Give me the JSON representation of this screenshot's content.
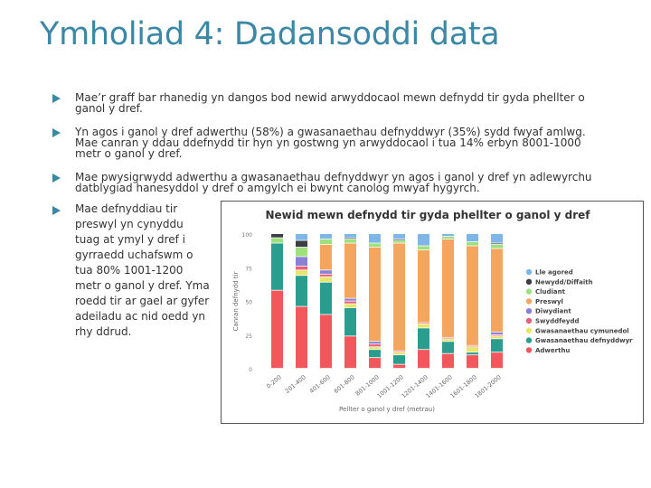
{
  "slide": {
    "title": "Ymholiad 4: Dadansoddi data",
    "bullets": [
      "Mae’r graff bar rhanedig yn dangos bod newid arwyddocaol mewn defnydd tir gyda phellter o ganol y dref.",
      "Yn agos i ganol y dref adwerthu (58%) a gwasanaethau defnyddwyr (35%) sydd fwyaf amlwg. Mae canran y ddau ddefnydd tir hyn yn gostwng yn arwyddocaol i tua 14% erbyn 8001-1000 metr o ganol y dref.",
      "Mae pwysigrwydd adwerthu a gwasanaethau defnyddwyr yn agos i ganol y dref yn adlewyrchu datblygiad hanesyddol y dref o amgylch ei bwynt canolog mwyaf hygyrch.",
      "Mae defnyddiau tir preswyl yn cynyddu tuag at ymyl y dref i gyrraedd uchafswm o tua 80% 1001-1200 metr o ganol y dref. Yma roedd tir ar gael ar gyfer adeiladu ac nid oedd yn rhy ddrud."
    ],
    "bullet_icon": "arrow-bullet-icon",
    "accent_color": "#3a87a6"
  },
  "chart_data": {
    "type": "bar",
    "stacked": true,
    "title": "Newid mewn defnydd tir gyda phellter o ganol y dref",
    "xlabel": "Pellter o ganol y dref (metrau)",
    "ylabel": "Canran defnydd tir",
    "ylim": [
      0,
      100
    ],
    "yticks": [
      0,
      25,
      50,
      75,
      100
    ],
    "grid": false,
    "legend_position": "right",
    "categories": [
      "0-200",
      "201-400",
      "401-600",
      "601-800",
      "801-1000",
      "1001-1200",
      "1201-1400",
      "1401-1600",
      "1601-1800",
      "1801-2000"
    ],
    "series": [
      {
        "name": "Adwerthu",
        "color": "#f2585b",
        "values": [
          58,
          46,
          40,
          24,
          8,
          3,
          14,
          11,
          10,
          12
        ]
      },
      {
        "name": "Gwasanaethau defnyddwyr",
        "color": "#2a9d8f",
        "values": [
          35,
          23,
          24,
          21,
          6,
          7,
          16,
          9,
          2,
          10
        ]
      },
      {
        "name": "Gwasanaethau cymunedol",
        "color": "#e9e46c",
        "values": [
          0,
          4,
          4,
          3,
          2,
          2,
          3,
          2,
          4,
          2
        ]
      },
      {
        "name": "Swyddfeydd",
        "color": "#e8607a",
        "values": [
          0,
          3,
          2,
          2,
          2,
          1,
          1,
          1,
          1,
          1
        ]
      },
      {
        "name": "Diwydiant",
        "color": "#8b7fd6",
        "values": [
          0,
          7,
          3,
          2,
          2,
          0,
          0,
          0,
          0,
          2
        ]
      },
      {
        "name": "Preswyl",
        "color": "#f4a65e",
        "values": [
          0,
          0,
          19,
          41,
          70,
          80,
          54,
          73,
          74,
          62
        ]
      },
      {
        "name": "Cludiant",
        "color": "#9ee07e",
        "values": [
          4,
          7,
          4,
          3,
          3,
          2,
          3,
          2,
          3,
          3
        ]
      },
      {
        "name": "Newydd/Diffaith",
        "color": "#3d3d44",
        "values": [
          3,
          5,
          0,
          1,
          0,
          1,
          0,
          0,
          0,
          1
        ]
      },
      {
        "name": "Lle agored",
        "color": "#7eb6e8",
        "values": [
          0,
          5,
          4,
          3,
          7,
          4,
          9,
          2,
          6,
          7
        ]
      }
    ]
  }
}
